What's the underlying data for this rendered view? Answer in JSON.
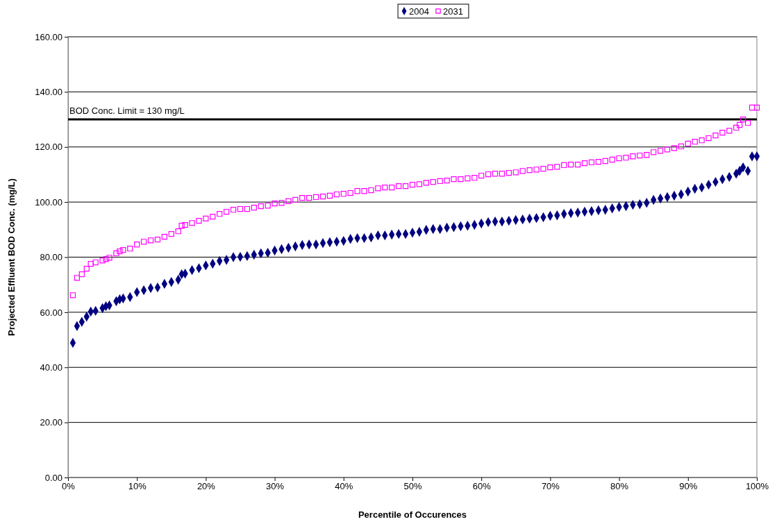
{
  "chart_data": {
    "type": "scatter",
    "xlabel": "Percentile of Occurences",
    "ylabel": "Projected Effluent BOD Conc. (mg/L)",
    "x": [
      0.7,
      1.3,
      2,
      2.7,
      3.3,
      4,
      5,
      5.5,
      6,
      7,
      7.5,
      8,
      9,
      10,
      11,
      12,
      13,
      14,
      15,
      16,
      16.5,
      17,
      18,
      19,
      20,
      21,
      22,
      23,
      24,
      25,
      26,
      27,
      28,
      29,
      30,
      31,
      32,
      33,
      34,
      35,
      36,
      37,
      38,
      39,
      40,
      41,
      42,
      43,
      44,
      45,
      46,
      47,
      48,
      49,
      50,
      51,
      52,
      53,
      54,
      55,
      56,
      57,
      58,
      59,
      60,
      61,
      62,
      63,
      64,
      65,
      66,
      67,
      68,
      69,
      70,
      71,
      72,
      73,
      74,
      75,
      76,
      77,
      78,
      79,
      80,
      81,
      82,
      83,
      84,
      85,
      86,
      87,
      88,
      89,
      90,
      91,
      92,
      93,
      94,
      95,
      96,
      97,
      97.5,
      98,
      98.7,
      99.3,
      100
    ],
    "series": [
      {
        "name": "2004",
        "color": "#000080",
        "marker": "diamond",
        "values": [
          48.9,
          55,
          56.5,
          58.4,
          60.2,
          60.5,
          61.5,
          62.2,
          62.5,
          64,
          64.7,
          65,
          65.5,
          67.3,
          68,
          68.8,
          69,
          70.3,
          71,
          71.8,
          73.8,
          74,
          75.3,
          76,
          77,
          77.6,
          78.6,
          79,
          80,
          80.1,
          80.4,
          80.9,
          81.4,
          81.6,
          82.4,
          82.9,
          83.4,
          83.9,
          84.4,
          84.6,
          84.6,
          85.1,
          85.4,
          85.6,
          85.9,
          86.6,
          86.9,
          86.9,
          87.2,
          87.9,
          87.9,
          88.2,
          88.4,
          88.4,
          88.9,
          89.2,
          89.9,
          90.2,
          90.2,
          90.7,
          90.9,
          91.2,
          91.4,
          91.7,
          92.2,
          92.7,
          92.9,
          92.9,
          93.2,
          93.5,
          93.7,
          94,
          94.2,
          94.5,
          95,
          95.2,
          95.7,
          96,
          96.2,
          96.5,
          96.7,
          97,
          97.2,
          97.7,
          98.2,
          98.5,
          99,
          99.2,
          99.7,
          100.8,
          101.3,
          101.8,
          102.3,
          102.8,
          103.8,
          104.8,
          105.3,
          106.3,
          107.3,
          108.3,
          109.1,
          110.3,
          111.3,
          112.6,
          111.3,
          116.6,
          116.6
        ]
      },
      {
        "name": "2031",
        "color": "#ff00ff",
        "marker": "square",
        "values": [
          66.2,
          72.5,
          73.8,
          75.8,
          77.6,
          78.1,
          78.8,
          79.3,
          79.8,
          81.4,
          82.1,
          82.6,
          83.1,
          84.6,
          85.6,
          86.1,
          86.4,
          87.4,
          88.4,
          89.4,
          91.4,
          91.7,
          92.4,
          93.2,
          94,
          94.7,
          95.7,
          96.5,
          97.2,
          97.5,
          97.5,
          98,
          98.5,
          98.7,
          99.5,
          99.7,
          100.3,
          100.8,
          101.5,
          101.5,
          101.8,
          102,
          102.3,
          102.8,
          103,
          103.3,
          104,
          104,
          104.3,
          105,
          105.3,
          105.3,
          105.8,
          105.8,
          106.3,
          106.5,
          107,
          107.3,
          107.6,
          107.8,
          108.3,
          108.3,
          108.6,
          108.8,
          109.6,
          110.1,
          110.3,
          110.3,
          110.6,
          110.8,
          111.3,
          111.6,
          111.8,
          112.1,
          112.6,
          112.8,
          113.4,
          113.6,
          113.6,
          114.1,
          114.4,
          114.6,
          114.9,
          115.4,
          115.9,
          116.1,
          116.6,
          116.9,
          117.1,
          118.1,
          118.6,
          119.1,
          119.6,
          120.2,
          121.2,
          121.9,
          122.4,
          123.2,
          124.2,
          125.2,
          125.9,
          127,
          128,
          130,
          128.7,
          134.3,
          134.3
        ]
      }
    ],
    "xlim": [
      0,
      100
    ],
    "xticks": [
      {
        "value": 0,
        "label": "0%"
      },
      {
        "value": 10,
        "label": "10%"
      },
      {
        "value": 20,
        "label": "20%"
      },
      {
        "value": 30,
        "label": "30%"
      },
      {
        "value": 40,
        "label": "40%"
      },
      {
        "value": 50,
        "label": "50%"
      },
      {
        "value": 60,
        "label": "60%"
      },
      {
        "value": 70,
        "label": "70%"
      },
      {
        "value": 80,
        "label": "80%"
      },
      {
        "value": 90,
        "label": "90%"
      },
      {
        "value": 100,
        "label": "100%"
      }
    ],
    "ylim": [
      0,
      160
    ],
    "yticks": [
      {
        "value": 0,
        "label": "0.00"
      },
      {
        "value": 20,
        "label": "20.00"
      },
      {
        "value": 40,
        "label": "40.00"
      },
      {
        "value": 60,
        "label": "60.00"
      },
      {
        "value": 80,
        "label": "80.00"
      },
      {
        "value": 100,
        "label": "100.00"
      },
      {
        "value": 120,
        "label": "120.00"
      },
      {
        "value": 140,
        "label": "140.00"
      },
      {
        "value": 160,
        "label": "160.00"
      }
    ],
    "ref_lines": [
      {
        "axis": "y",
        "value": 130,
        "label": "BOD Conc. Limit = 130 mg/L",
        "color": "#000000"
      }
    ],
    "grid": "y",
    "legend": "top"
  }
}
